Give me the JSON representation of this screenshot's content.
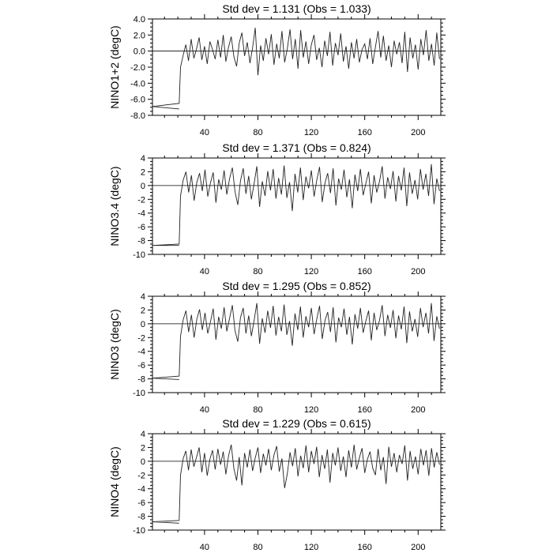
{
  "chart_data": [
    {
      "type": "line",
      "title": "Std dev = 1.131 (Obs = 1.033)",
      "ylabel": "NINO1+2 (degC)",
      "xlim": [
        1,
        217
      ],
      "ylim": [
        -8,
        4
      ],
      "yticks": [
        "4.0",
        "2.0",
        "0.0",
        "-2.0",
        "-4.0",
        "-6.0",
        "-8.0"
      ],
      "ytick_values": [
        4,
        2,
        0,
        -2,
        -4,
        -6,
        -8
      ],
      "xticks": [
        "40",
        "80",
        "120",
        "160",
        "200"
      ],
      "xtick_values": [
        40,
        80,
        120,
        160,
        200
      ],
      "zero_line": true,
      "spinup": [
        [
          21,
          -7.2
        ],
        [
          1,
          -6.9
        ],
        [
          21,
          -6.5
        ]
      ],
      "x_start": 22,
      "x_end": 216,
      "values": [
        -2.0,
        -0.5,
        0.8,
        -1.2,
        1.5,
        -0.9,
        0.3,
        1.7,
        -1.1,
        0.6,
        -1.6,
        1.2,
        0.2,
        -1.0,
        1.4,
        -0.8,
        2.0,
        -1.3,
        0.5,
        1.8,
        -0.7,
        -1.9,
        1.0,
        2.3,
        -0.6,
        1.1,
        -1.5,
        0.4,
        2.9,
        -3.0,
        0.7,
        -1.2,
        1.6,
        -0.4,
        2.1,
        -1.7,
        0.9,
        -0.9,
        2.5,
        -1.4,
        0.3,
        2.7,
        -1.0,
        1.5,
        -2.2,
        2.6,
        -0.8,
        1.2,
        -1.6,
        0.8,
        2.0,
        -1.1,
        0.4,
        -2.0,
        1.3,
        -0.6,
        2.4,
        -1.8,
        1.0,
        -0.5,
        2.2,
        -1.3,
        0.6,
        -2.2,
        1.1,
        -0.9,
        1.5,
        -1.4,
        0.2,
        0.9,
        -1.0,
        1.6,
        -1.6,
        0.5,
        2.5,
        -0.8,
        1.9,
        -1.2,
        0.7,
        -2.0,
        1.3,
        -0.4,
        1.1,
        -1.5,
        2.4,
        -2.6,
        1.7,
        -0.9,
        0.8,
        -2.3,
        1.5,
        -0.5,
        2.6,
        -1.2,
        0.9,
        -1.8,
        2.3,
        -1.0
      ]
    },
    {
      "type": "line",
      "title": "Std dev = 1.371 (Obs = 0.824)",
      "ylabel": "NINO3.4 (degC)",
      "xlim": [
        1,
        217
      ],
      "ylim": [
        -10,
        4
      ],
      "yticks": [
        "4",
        "2",
        "0",
        "-2",
        "-4",
        "-6",
        "-8",
        "-10"
      ],
      "ytick_values": [
        4,
        2,
        0,
        -2,
        -4,
        -6,
        -8,
        -10
      ],
      "xticks": [
        "40",
        "80",
        "120",
        "160",
        "200"
      ],
      "xtick_values": [
        40,
        80,
        120,
        160,
        200
      ],
      "zero_line": true,
      "spinup": [
        [
          21,
          -8.7
        ],
        [
          1,
          -8.7
        ],
        [
          21,
          -8.5
        ]
      ],
      "x_start": 22,
      "x_end": 216,
      "values": [
        -1.5,
        0.8,
        2.0,
        -1.0,
        1.5,
        -2.2,
        0.5,
        1.8,
        -0.8,
        2.3,
        -1.6,
        0.4,
        1.9,
        -2.5,
        0.9,
        -0.6,
        2.2,
        -1.3,
        1.0,
        2.6,
        -0.9,
        -2.8,
        0.7,
        2.5,
        -1.2,
        1.4,
        -2.0,
        0.3,
        2.8,
        -3.1,
        0.6,
        -1.5,
        2.1,
        -0.7,
        2.4,
        -1.9,
        1.1,
        -1.3,
        2.9,
        -1.8,
        0.5,
        -3.7,
        1.7,
        -1.0,
        2.6,
        -2.1,
        1.3,
        -0.4,
        2.2,
        -1.6,
        0.8,
        2.7,
        -2.4,
        0.4,
        1.8,
        -1.1,
        2.5,
        -2.9,
        1.0,
        -0.6,
        2.3,
        -1.7,
        0.9,
        -3.3,
        1.6,
        -0.8,
        2.4,
        -1.4,
        0.3,
        2.0,
        -2.6,
        1.5,
        -1.0,
        0.6,
        2.8,
        -1.9,
        1.2,
        -0.5,
        2.1,
        -2.3,
        1.4,
        -0.7,
        2.6,
        -3.0,
        1.9,
        -1.2,
        0.8,
        -2.0,
        2.4,
        -0.6,
        1.7,
        -1.5,
        3.1,
        -2.7,
        1.0,
        -0.8
      ]
    },
    {
      "type": "line",
      "title": "Std dev = 1.295 (Obs = 0.852)",
      "ylabel": "NINO3 (degC)",
      "xlim": [
        1,
        217
      ],
      "ylim": [
        -10,
        4
      ],
      "yticks": [
        "4",
        "2",
        "0",
        "-2",
        "-4",
        "-6",
        "-8",
        "-10"
      ],
      "ytick_values": [
        4,
        2,
        0,
        -2,
        -4,
        -6,
        -8,
        -10
      ],
      "xticks": [
        "40",
        "80",
        "120",
        "160",
        "200"
      ],
      "xtick_values": [
        40,
        80,
        120,
        160,
        200
      ],
      "zero_line": true,
      "spinup": [
        [
          21,
          -8.1
        ],
        [
          1,
          -7.9
        ],
        [
          21,
          -7.6
        ]
      ],
      "x_start": 22,
      "x_end": 216,
      "values": [
        -1.8,
        0.6,
        1.9,
        -1.2,
        1.3,
        -2.0,
        0.7,
        2.1,
        -0.9,
        1.6,
        -1.4,
        0.3,
        2.2,
        -2.3,
        1.0,
        -0.7,
        2.4,
        -1.1,
        0.8,
        2.7,
        -1.0,
        -2.6,
        0.9,
        2.3,
        -1.4,
        1.2,
        -1.8,
        0.5,
        3.0,
        -2.9,
        0.8,
        -1.3,
        1.9,
        -0.6,
        2.6,
        -1.7,
        1.0,
        -1.1,
        2.8,
        -1.6,
        0.4,
        -3.2,
        1.5,
        -0.9,
        2.5,
        -2.0,
        1.1,
        -0.5,
        2.3,
        -1.5,
        0.7,
        2.6,
        -2.2,
        0.5,
        1.7,
        -1.2,
        2.4,
        -2.7,
        0.9,
        -0.5,
        2.2,
        -1.6,
        1.0,
        -3.0,
        1.4,
        -0.7,
        2.3,
        -1.3,
        0.4,
        1.9,
        -2.4,
        1.6,
        -0.9,
        0.5,
        2.7,
        -1.8,
        1.3,
        -0.6,
        2.0,
        -2.1,
        1.2,
        -0.8,
        2.5,
        -2.8,
        1.8,
        -1.1,
        0.7,
        -1.9,
        2.3,
        -0.5,
        1.6,
        -1.4,
        3.0,
        -2.5,
        1.1,
        -0.7
      ]
    },
    {
      "type": "line",
      "title": "Std dev = 1.229 (Obs = 0.615)",
      "ylabel": "NINO4 (degC)",
      "xlim": [
        1,
        217
      ],
      "ylim": [
        -10,
        4
      ],
      "yticks": [
        "4",
        "2",
        "0",
        "-2",
        "-4",
        "-6",
        "-8",
        "-10"
      ],
      "ytick_values": [
        4,
        2,
        0,
        -2,
        -4,
        -6,
        -8,
        -10
      ],
      "xticks": [
        "40",
        "80",
        "120",
        "160",
        "200"
      ],
      "xtick_values": [
        40,
        80,
        120,
        160,
        200
      ],
      "zero_line": true,
      "spinup": [
        [
          21,
          -9.0
        ],
        [
          1,
          -8.8
        ],
        [
          21,
          -8.6
        ]
      ],
      "x_start": 22,
      "x_end": 216,
      "values": [
        -2.0,
        0.4,
        1.5,
        -1.3,
        1.7,
        -0.8,
        0.6,
        2.0,
        -1.6,
        1.2,
        -2.1,
        0.3,
        1.6,
        -1.2,
        1.8,
        -0.5,
        1.4,
        -1.9,
        0.8,
        2.4,
        -1.1,
        -2.8,
        0.6,
        -3.5,
        1.2,
        -0.9,
        1.7,
        -1.4,
        0.5,
        2.0,
        -1.7,
        1.1,
        -0.6,
        1.8,
        -1.3,
        0.9,
        2.2,
        -1.5,
        0.4,
        -3.9,
        -1.8,
        1.3,
        -0.7,
        1.9,
        -2.2,
        0.8,
        -1.0,
        2.3,
        -1.6,
        1.5,
        -0.4,
        2.1,
        -2.3,
        0.9,
        -1.1,
        1.7,
        -3.1,
        1.2,
        -0.6,
        2.0,
        -1.4,
        0.7,
        -2.3,
        1.6,
        -0.9,
        2.4,
        -1.2,
        0.5,
        1.9,
        -1.7,
        0.3,
        1.4,
        -1.0,
        -2.0,
        1.8,
        -1.3,
        0.6,
        -3.3,
        2.1,
        -0.8,
        1.2,
        -1.6,
        0.9,
        -0.4,
        2.3,
        -2.8,
        1.5,
        -1.1,
        0.7,
        -1.9,
        1.8,
        -0.6,
        1.6,
        -2.1,
        1.9,
        -0.9,
        1.3,
        -0.5
      ]
    }
  ]
}
